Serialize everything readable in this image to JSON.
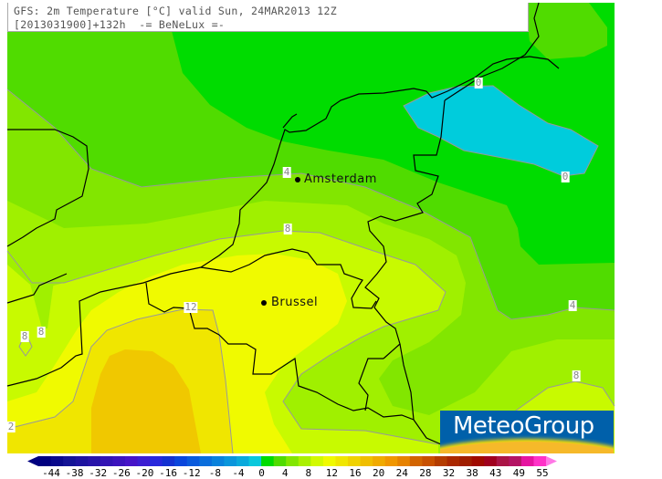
{
  "title": {
    "line1": "GFS: 2m Temperature [°C] valid Sun, 24MAR2013 12Z",
    "line2": "[2013031900]+132h  -= BeNeLux =-"
  },
  "contour_labels": [
    "0",
    "0",
    "4",
    "4",
    "8",
    "8",
    "8",
    "8",
    "12",
    "2"
  ],
  "cities": [
    {
      "name": "Amsterdam"
    },
    {
      "name": "Brussel"
    }
  ],
  "logo": {
    "text": "MeteoGroup"
  },
  "colorbar": {
    "labels": [
      "-44",
      "-38",
      "-32",
      "-26",
      "-20",
      "-16",
      "-12",
      "-8",
      "-4",
      "0",
      "4",
      "8",
      "12",
      "16",
      "20",
      "24",
      "28",
      "32",
      "38",
      "43",
      "49",
      "55"
    ],
    "colors": [
      "#000080",
      "#0a0a8c",
      "#141496",
      "#1e14a0",
      "#2814aa",
      "#3214b4",
      "#3c14be",
      "#4614c8",
      "#3c1ed2",
      "#2828dc",
      "#1432d2",
      "#0a46dc",
      "#0a5adc",
      "#0a6edc",
      "#0a82dc",
      "#0a96dc",
      "#0aaadc",
      "#0ac8dc",
      "#00dc00",
      "#50dc00",
      "#82e600",
      "#aaf000",
      "#d2fa00",
      "#f0fa00",
      "#f0e600",
      "#f0d200",
      "#f0be00",
      "#f0aa00",
      "#f09600",
      "#e68200",
      "#d26400",
      "#c85000",
      "#b43c00",
      "#aa2800",
      "#a01e00",
      "#a00a00",
      "#a0001e",
      "#aa1446",
      "#b41464",
      "#e614a0",
      "#ff32c8"
    ],
    "arrow_low_color": "#000080",
    "arrow_high_color": "#ff78e6"
  },
  "field_colors": {
    "below_0": "#00ccdc",
    "0_2": "#00dc00",
    "2_4": "#50dc00",
    "4_6": "#82e600",
    "6_8": "#a0f000",
    "8_10": "#c8fa00",
    "10_12": "#f0fa00",
    "12_14": "#f0e600",
    "14_16": "#f0c800"
  }
}
